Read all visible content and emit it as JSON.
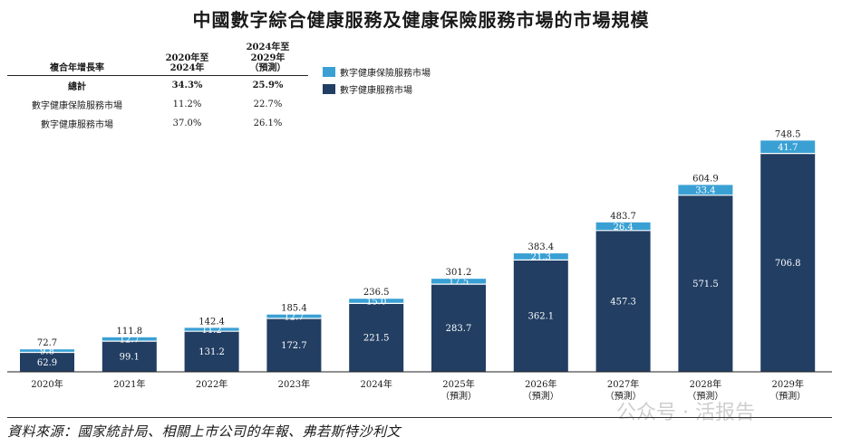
{
  "title": "中國數字綜合健康服務及健康保險服務市場的市場規模",
  "cagr_table": {
    "header_label": "複合年增長率",
    "col1": "2020年至\n2024年",
    "col2": "2024年至\n2029年\n（預測）",
    "rows": [
      {
        "label": "總計",
        "v1": "34.3%",
        "v2": "25.9%"
      },
      {
        "label": "數字健康保險服務市場",
        "v1": "11.2%",
        "v2": "22.7%"
      },
      {
        "label": "數字健康服務市場",
        "v1": "37.0%",
        "v2": "26.1%"
      }
    ]
  },
  "legend": [
    {
      "label": "數字健康保險服務市場",
      "color": "#3aa0d4"
    },
    {
      "label": "數字健康服務市場",
      "color": "#223e63"
    }
  ],
  "chart_data": {
    "type": "bar",
    "stacked": true,
    "categories": [
      "2020年",
      "2021年",
      "2022年",
      "2023年",
      "2024年",
      "2025年",
      "2026年",
      "2027年",
      "2028年",
      "2029年"
    ],
    "sublabels": [
      "",
      "",
      "",
      "",
      "",
      "（預測）",
      "（預測）",
      "（預測）",
      "（預測）",
      "（預測）"
    ],
    "series": [
      {
        "name": "數字健康服務市場",
        "values": [
          62.9,
          99.1,
          131.2,
          172.7,
          221.5,
          283.7,
          362.1,
          457.3,
          571.5,
          706.8
        ],
        "color": "#223e63"
      },
      {
        "name": "數字健康保險服務市場",
        "values": [
          9.8,
          12.7,
          11.2,
          12.7,
          15.0,
          17.5,
          21.3,
          26.4,
          33.4,
          41.7
        ],
        "color": "#3aa0d4"
      }
    ],
    "totals": [
      "72.7",
      "111.8",
      "142.4",
      "185.4",
      "236.5",
      "301.2",
      "383.4",
      "483.7",
      "604.9",
      "748.5"
    ],
    "bottom_labels": [
      "62.9",
      "99.1",
      "131.2",
      "172.7",
      "221.5",
      "283.7",
      "362.1",
      "457.3",
      "571.5",
      "706.8"
    ],
    "top_labels": [
      "9.8",
      "12.7",
      "11.2",
      "12.7",
      "15.0",
      "17.5",
      "21.3",
      "26.4",
      "33.4",
      "41.7"
    ],
    "ylim": [
      0,
      760
    ],
    "legend_placement": "top-left"
  },
  "source": "資料來源：國家統計局、相關上市公司的年報、弗若斯特沙利文",
  "watermark": "公众号 · 活报告"
}
